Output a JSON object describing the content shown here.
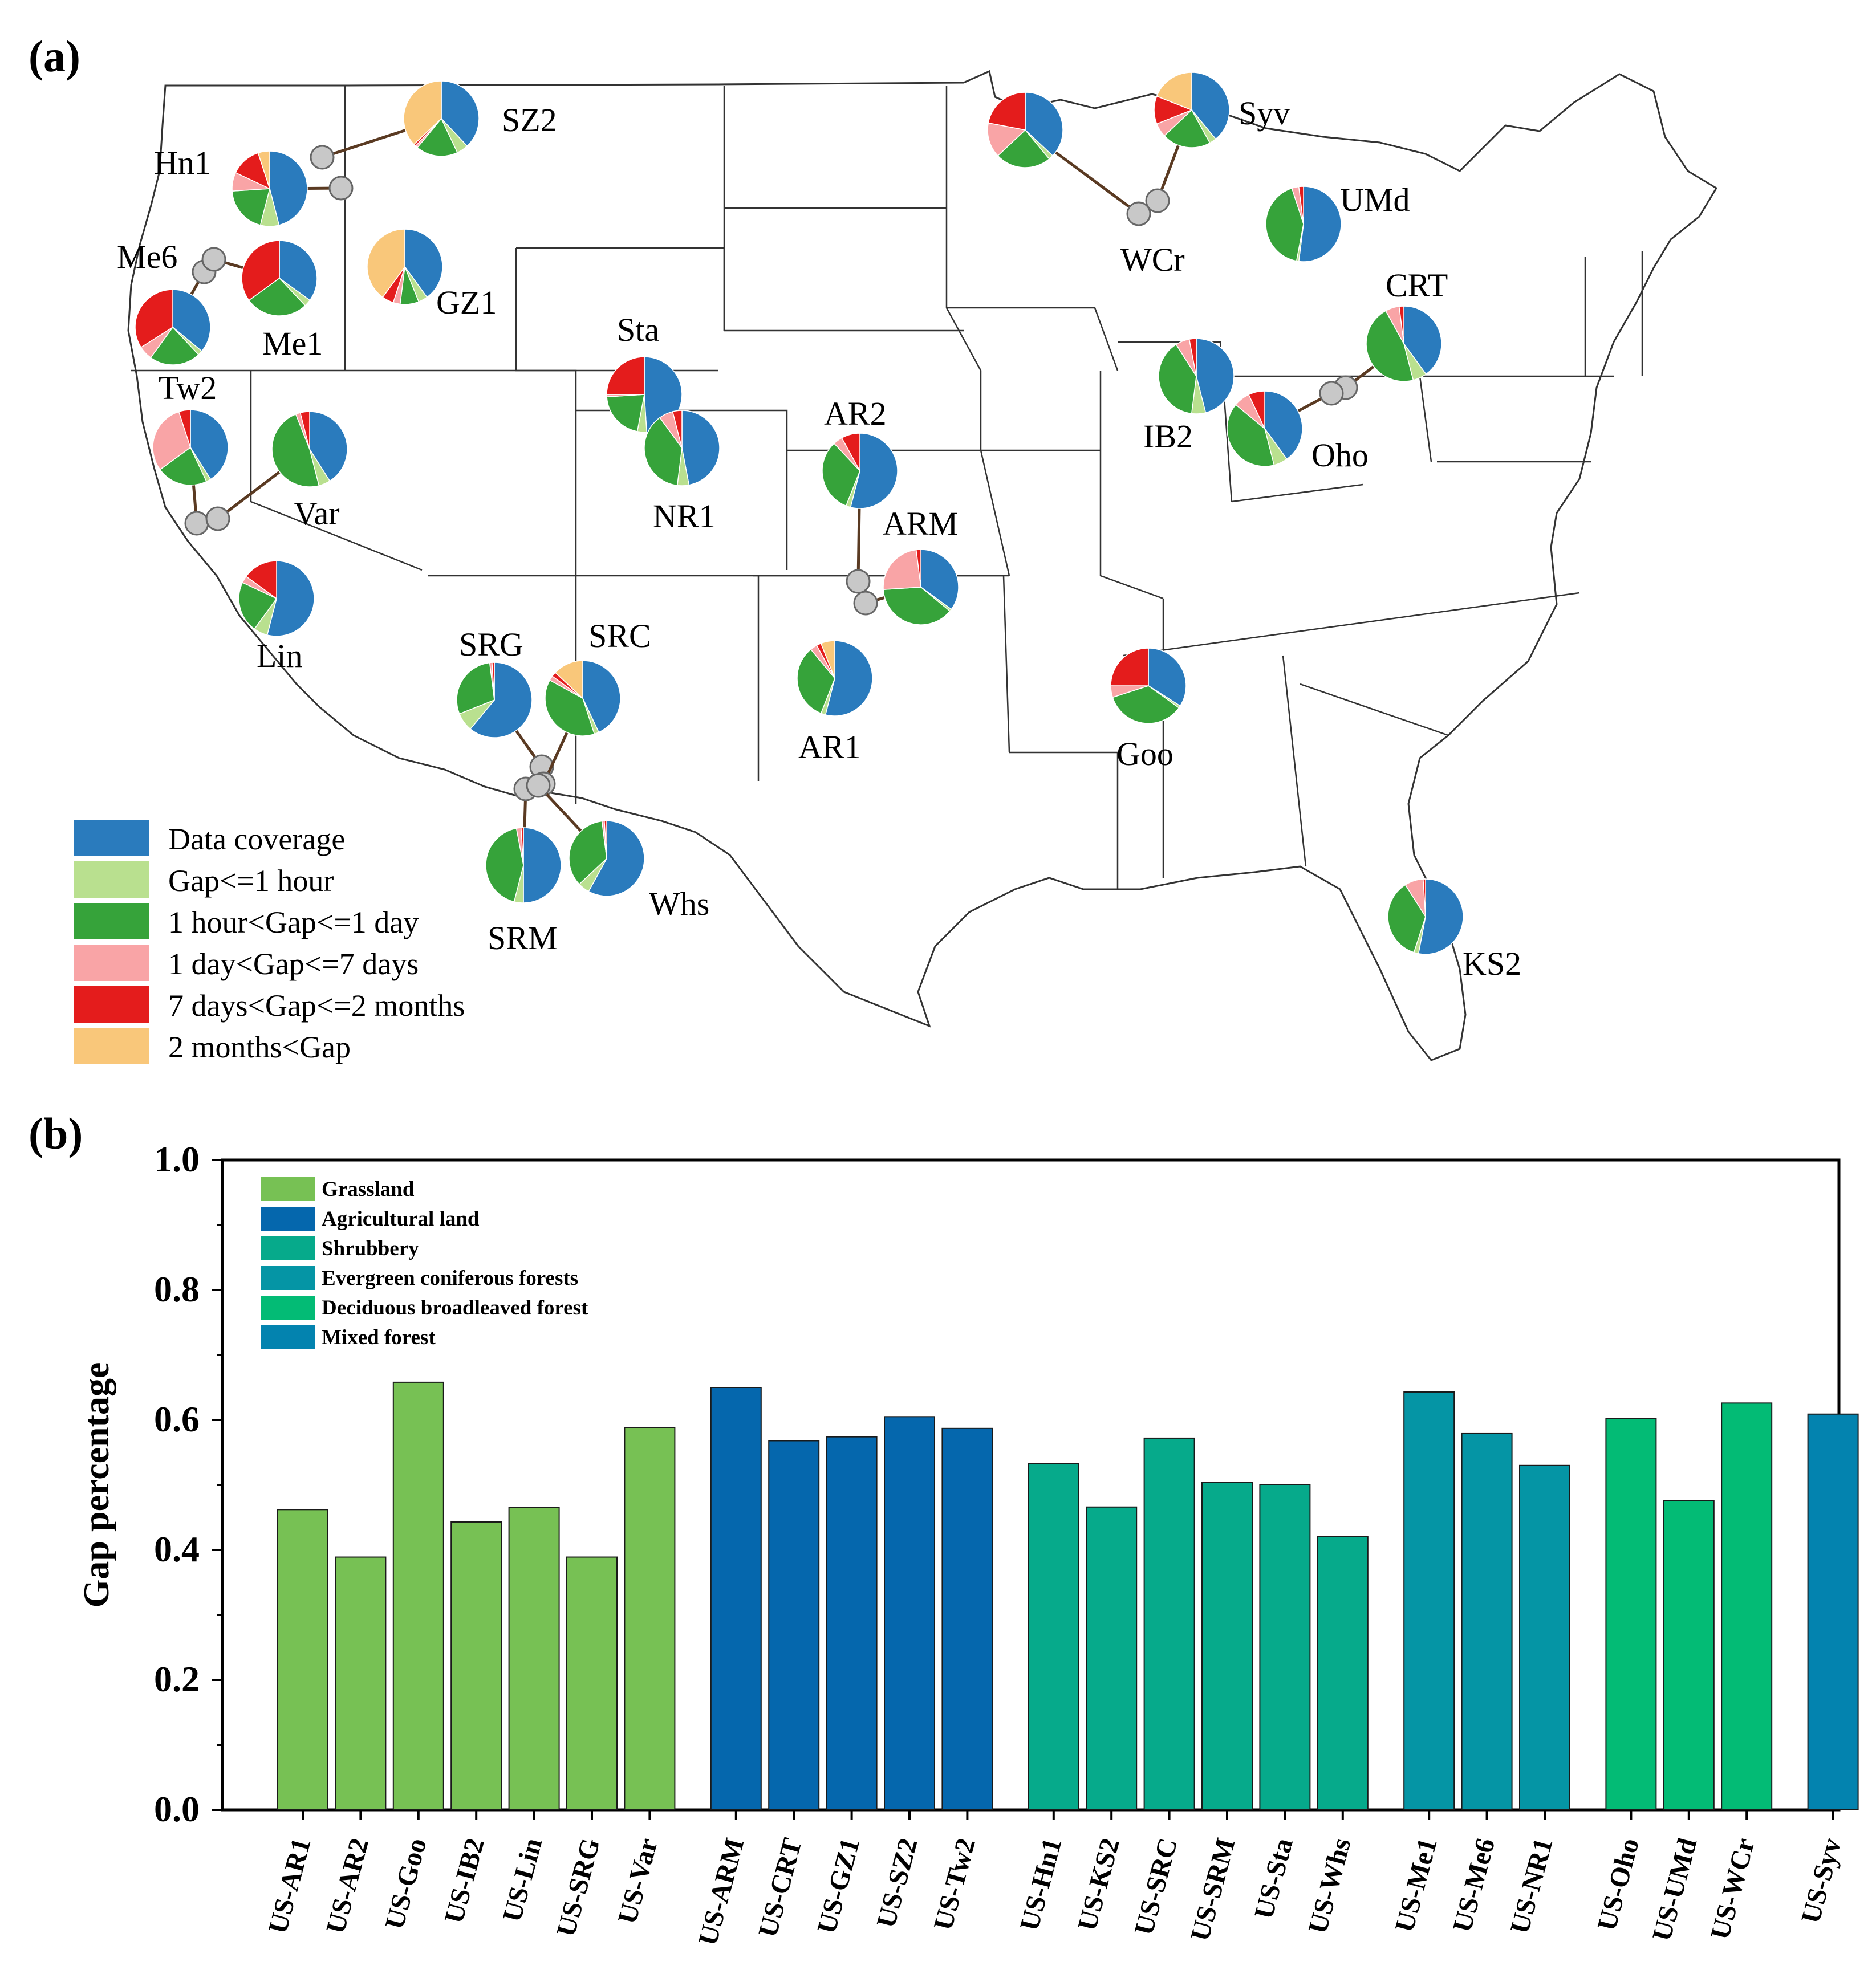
{
  "panel_a": {
    "label": "(a)",
    "legend": [
      {
        "label": "Data coverage",
        "color": "#2a7bbd"
      },
      {
        "label": "Gap<=1 hour",
        "color": "#b9e08f"
      },
      {
        "label": "1 hour<Gap<=1 day",
        "color": "#36a33a"
      },
      {
        "label": "1 day<Gap<=7 days",
        "color": "#f9a4a6"
      },
      {
        "label": "7 days<Gap<=2 months",
        "color": "#e41c1c"
      },
      {
        "label": "2 months<Gap",
        "color": "#f9c77a"
      }
    ],
    "sites": [
      {
        "name": "SZ2",
        "fractions": [
          0.38,
          0.05,
          0.18,
          0.01,
          0.01,
          0.37
        ]
      },
      {
        "name": "Hn1",
        "fractions": [
          0.46,
          0.08,
          0.2,
          0.08,
          0.13,
          0.05
        ]
      },
      {
        "name": "GZ1",
        "fractions": [
          0.4,
          0.04,
          0.08,
          0.03,
          0.05,
          0.4
        ]
      },
      {
        "name": "Me6",
        "fractions": [
          0.36,
          0.02,
          0.22,
          0.06,
          0.34,
          0.0
        ]
      },
      {
        "name": "Me1",
        "fractions": [
          0.35,
          0.03,
          0.27,
          0.0,
          0.35,
          0.0
        ]
      },
      {
        "name": "Tw2",
        "fractions": [
          0.41,
          0.02,
          0.22,
          0.3,
          0.05,
          0.0
        ]
      },
      {
        "name": "Var",
        "fractions": [
          0.41,
          0.05,
          0.48,
          0.02,
          0.04,
          0.0
        ]
      },
      {
        "name": "Lin",
        "fractions": [
          0.54,
          0.06,
          0.22,
          0.03,
          0.15,
          0.0
        ]
      },
      {
        "name": "Sta",
        "fractions": [
          0.49,
          0.04,
          0.21,
          0.01,
          0.25,
          0.0
        ]
      },
      {
        "name": "NR1",
        "fractions": [
          0.47,
          0.05,
          0.38,
          0.06,
          0.04,
          0.0
        ]
      },
      {
        "name": "AR2",
        "fractions": [
          0.54,
          0.02,
          0.32,
          0.04,
          0.08,
          0.0
        ]
      },
      {
        "name": "ARM",
        "fractions": [
          0.35,
          0.01,
          0.38,
          0.24,
          0.02,
          0.0
        ]
      },
      {
        "name": "AR1",
        "fractions": [
          0.54,
          0.02,
          0.33,
          0.03,
          0.02,
          0.06
        ]
      },
      {
        "name": "SRG",
        "fractions": [
          0.61,
          0.08,
          0.29,
          0.01,
          0.01,
          0.0
        ]
      },
      {
        "name": "SRC",
        "fractions": [
          0.43,
          0.02,
          0.38,
          0.02,
          0.02,
          0.13
        ]
      },
      {
        "name": "SRM",
        "fractions": [
          0.5,
          0.04,
          0.43,
          0.02,
          0.01,
          0.0
        ]
      },
      {
        "name": "Whs",
        "fractions": [
          0.58,
          0.05,
          0.35,
          0.01,
          0.01,
          0.0
        ]
      },
      {
        "name": "Goo",
        "fractions": [
          0.34,
          0.01,
          0.35,
          0.05,
          0.25,
          0.0
        ]
      },
      {
        "name": "KS2",
        "fractions": [
          0.53,
          0.02,
          0.36,
          0.08,
          0.01,
          0.0
        ]
      },
      {
        "name": "WCr",
        "fractions": [
          0.37,
          0.02,
          0.24,
          0.15,
          0.22,
          0.0
        ]
      },
      {
        "name": "Syv",
        "fractions": [
          0.39,
          0.03,
          0.21,
          0.06,
          0.12,
          0.19
        ]
      },
      {
        "name": "UMd",
        "fractions": [
          0.52,
          0.01,
          0.42,
          0.03,
          0.02,
          0.0
        ]
      },
      {
        "name": "CRT",
        "fractions": [
          0.4,
          0.06,
          0.46,
          0.06,
          0.02,
          0.0
        ]
      },
      {
        "name": "IB2",
        "fractions": [
          0.46,
          0.06,
          0.39,
          0.06,
          0.03,
          0.0
        ]
      },
      {
        "name": "Oho",
        "fractions": [
          0.4,
          0.06,
          0.4,
          0.07,
          0.07,
          0.0
        ]
      }
    ]
  },
  "chart_data": {
    "type": "bar",
    "panel_label": "(b)",
    "ylabel": "Gap percentage",
    "xlabel": "",
    "ylim": [
      0,
      1.0
    ],
    "yticks": [
      "0.0",
      "0.2",
      "0.4",
      "0.6",
      "0.8",
      "1.0"
    ],
    "legend_position": "top-left",
    "groups": [
      {
        "name": "Grassland",
        "color": "#77c154",
        "categories": [
          "US-AR1",
          "US-AR2",
          "US-Goo",
          "US-IB2",
          "US-Lin",
          "US-SRG",
          "US-Var"
        ],
        "values": [
          0.462,
          0.389,
          0.658,
          0.443,
          0.465,
          0.389,
          0.588
        ]
      },
      {
        "name": "Agricultural land",
        "color": "#0567ad",
        "categories": [
          "US-ARM",
          "US-CRT",
          "US-GZ1",
          "US-SZ2",
          "US-Tw2"
        ],
        "values": [
          0.65,
          0.568,
          0.574,
          0.605,
          0.587
        ]
      },
      {
        "name": "Shrubbery",
        "color": "#06aa8b",
        "categories": [
          "US-Hn1",
          "US-KS2",
          "US-SRC",
          "US-SRM",
          "US-Sta",
          "US-Whs"
        ],
        "values": [
          0.533,
          0.466,
          0.572,
          0.504,
          0.5,
          0.421
        ]
      },
      {
        "name": "Evergreen coniferous forests",
        "color": "#0595a5",
        "categories": [
          "US-Me1",
          "US-Me6",
          "US-NR1"
        ],
        "values": [
          0.643,
          0.579,
          0.53
        ]
      },
      {
        "name": "Deciduous broadleaved forest",
        "color": "#03bb75",
        "categories": [
          "US-Oho",
          "US-UMd",
          "US-WCr"
        ],
        "values": [
          0.602,
          0.476,
          0.626
        ]
      },
      {
        "name": "Mixed forest",
        "color": "#0383af",
        "categories": [
          "US-Syv"
        ],
        "values": [
          0.609
        ]
      }
    ]
  }
}
